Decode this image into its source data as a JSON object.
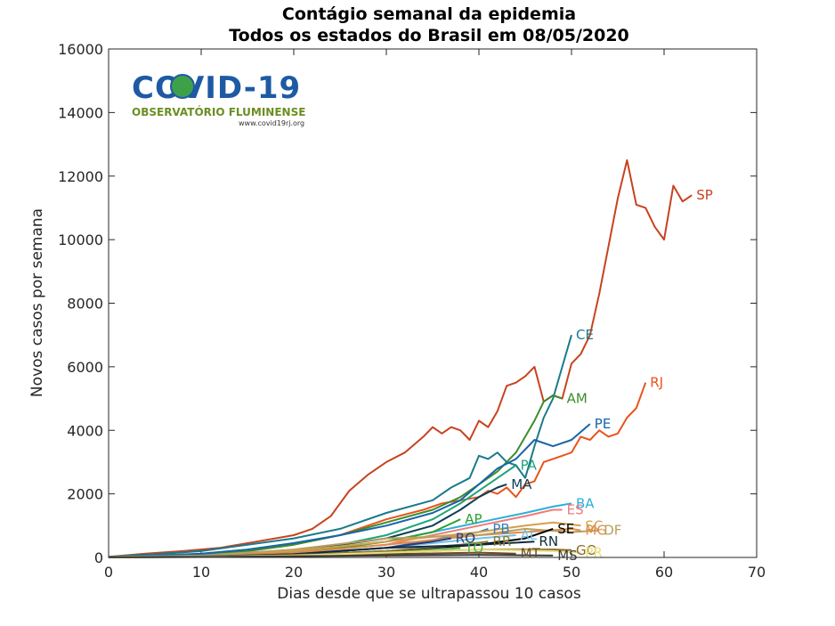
{
  "chart_data": {
    "type": "line",
    "title": "Contágio semanal da epidemia",
    "subtitle": "Todos os estados do Brasil em 08/05/2020",
    "xlabel": "Dias desde que se ultrapassou 10 casos",
    "ylabel": "Novos casos por semana",
    "xlim": [
      0,
      70
    ],
    "ylim": [
      0,
      16000
    ],
    "xticks": [
      0,
      10,
      20,
      30,
      40,
      50,
      60,
      70
    ],
    "yticks": [
      0,
      2000,
      4000,
      6000,
      8000,
      10000,
      12000,
      14000,
      16000
    ],
    "grid": false,
    "legend": "none",
    "logo": {
      "title": "COVID-19",
      "subtitle": "OBSERVATÓRIO FLUMINENSE",
      "url": "www.covid19rj.org"
    },
    "series": [
      {
        "name": "SP",
        "color": "#c8421e",
        "x": [
          0,
          4,
          8,
          12,
          16,
          20,
          22,
          24,
          26,
          28,
          30,
          32,
          34,
          35,
          36,
          37,
          38,
          39,
          40,
          41,
          42,
          43,
          44,
          45,
          46,
          47,
          48,
          49,
          50,
          51,
          52,
          53,
          54,
          55,
          56,
          57,
          58,
          59,
          60,
          61,
          62,
          63
        ],
        "y": [
          20,
          120,
          200,
          300,
          500,
          700,
          900,
          1300,
          2100,
          2600,
          3000,
          3300,
          3800,
          4100,
          3900,
          4100,
          4000,
          3700,
          4300,
          4100,
          4600,
          5400,
          5500,
          5700,
          6000,
          4900,
          5100,
          5000,
          6100,
          6400,
          7000,
          8300,
          9800,
          11300,
          12500,
          11100,
          11000,
          10400,
          10000,
          11700,
          11200,
          11400
        ]
      },
      {
        "name": "RJ",
        "color": "#e8541a",
        "x": [
          0,
          5,
          10,
          15,
          20,
          25,
          30,
          34,
          36,
          38,
          40,
          41,
          42,
          43,
          44,
          45,
          46,
          47,
          48,
          49,
          50,
          51,
          52,
          53,
          54,
          55,
          56,
          57,
          58
        ],
        "y": [
          10,
          60,
          100,
          200,
          400,
          700,
          1200,
          1500,
          1700,
          1800,
          1900,
          2100,
          2000,
          2200,
          1900,
          2300,
          2400,
          3000,
          3100,
          3200,
          3300,
          3800,
          3700,
          4000,
          3800,
          3900,
          4400,
          4700,
          5500
        ]
      },
      {
        "name": "CE",
        "color": "#1a7a8c",
        "x": [
          0,
          5,
          10,
          15,
          20,
          25,
          30,
          35,
          37,
          39,
          40,
          41,
          42,
          43,
          44,
          45,
          46,
          47,
          48,
          49,
          50
        ],
        "y": [
          20,
          100,
          200,
          400,
          600,
          900,
          1400,
          1800,
          2200,
          2500,
          3200,
          3100,
          3300,
          3000,
          2900,
          2500,
          3500,
          4400,
          5000,
          6000,
          7000
        ]
      },
      {
        "name": "AM",
        "color": "#3d8c2a",
        "x": [
          0,
          5,
          10,
          15,
          20,
          25,
          30,
          35,
          38,
          40,
          42,
          44,
          46,
          47,
          48,
          49
        ],
        "y": [
          10,
          50,
          100,
          200,
          400,
          700,
          1100,
          1500,
          1900,
          2300,
          2700,
          3300,
          4300,
          4900,
          5100,
          5000
        ]
      },
      {
        "name": "PE",
        "color": "#1565a8",
        "x": [
          0,
          5,
          10,
          15,
          20,
          25,
          30,
          35,
          38,
          40,
          42,
          44,
          46,
          48,
          50,
          52
        ],
        "y": [
          10,
          60,
          120,
          250,
          450,
          700,
          1000,
          1400,
          1800,
          2300,
          2800,
          3100,
          3700,
          3500,
          3700,
          4200
        ]
      },
      {
        "name": "PA",
        "color": "#1fa37a",
        "x": [
          0,
          10,
          20,
          25,
          30,
          35,
          38,
          40,
          42,
          44
        ],
        "y": [
          10,
          60,
          200,
          400,
          700,
          1200,
          1700,
          2100,
          2500,
          2900
        ]
      },
      {
        "name": "MA",
        "color": "#103e54",
        "x": [
          0,
          10,
          20,
          25,
          30,
          35,
          38,
          40,
          42,
          43
        ],
        "y": [
          10,
          60,
          200,
          400,
          600,
          1000,
          1500,
          1900,
          2200,
          2300
        ]
      },
      {
        "name": "BA",
        "color": "#2bb0d8",
        "x": [
          0,
          10,
          20,
          30,
          35,
          40,
          45,
          48,
          50
        ],
        "y": [
          10,
          60,
          200,
          500,
          800,
          1100,
          1400,
          1600,
          1700
        ]
      },
      {
        "name": "ES",
        "color": "#f07a7a",
        "x": [
          0,
          10,
          20,
          30,
          35,
          40,
          45,
          48,
          49
        ],
        "y": [
          10,
          50,
          150,
          400,
          700,
          1000,
          1300,
          1500,
          1500
        ]
      },
      {
        "name": "AP",
        "color": "#2ca02c",
        "x": [
          0,
          10,
          20,
          25,
          30,
          35,
          38
        ],
        "y": [
          10,
          50,
          150,
          300,
          500,
          800,
          1200
        ]
      },
      {
        "name": "PB",
        "color": "#2d7fbf",
        "x": [
          0,
          10,
          20,
          30,
          35,
          40,
          41
        ],
        "y": [
          10,
          40,
          120,
          300,
          550,
          800,
          900
        ]
      },
      {
        "name": "SC",
        "color": "#d4a04a",
        "x": [
          0,
          10,
          20,
          30,
          40,
          45,
          48,
          51
        ],
        "y": [
          10,
          50,
          200,
          500,
          800,
          1000,
          1100,
          1000
        ]
      },
      {
        "name": "MG",
        "color": "#e08a4a",
        "x": [
          0,
          10,
          20,
          30,
          40,
          45,
          50,
          51
        ],
        "y": [
          10,
          40,
          150,
          400,
          700,
          800,
          900,
          850
        ]
      },
      {
        "name": "DF",
        "color": "#b8a060",
        "x": [
          0,
          10,
          20,
          30,
          40,
          45,
          50,
          53
        ],
        "y": [
          10,
          60,
          250,
          600,
          700,
          900,
          800,
          850
        ]
      },
      {
        "name": "SE",
        "color": "#000000",
        "x": [
          0,
          10,
          20,
          30,
          40,
          45,
          48
        ],
        "y": [
          5,
          20,
          80,
          200,
          400,
          600,
          900
        ]
      },
      {
        "name": "AL",
        "color": "#6ec3e8",
        "x": [
          0,
          10,
          20,
          30,
          40,
          44
        ],
        "y": [
          5,
          30,
          100,
          300,
          600,
          700
        ]
      },
      {
        "name": "RO",
        "color": "#2e3a7a",
        "x": [
          0,
          10,
          20,
          30,
          35,
          37
        ],
        "y": [
          5,
          30,
          100,
          300,
          500,
          600
        ]
      },
      {
        "name": "RR",
        "color": "#8a7a3a",
        "x": [
          0,
          10,
          20,
          30,
          38,
          41
        ],
        "y": [
          5,
          20,
          80,
          200,
          400,
          500
        ]
      },
      {
        "name": "RN",
        "color": "#102a3a",
        "x": [
          0,
          10,
          20,
          30,
          40,
          46
        ],
        "y": [
          5,
          20,
          100,
          300,
          400,
          500
        ]
      },
      {
        "name": "TO",
        "color": "#5ab04a",
        "x": [
          0,
          10,
          20,
          30,
          36,
          38
        ],
        "y": [
          5,
          15,
          60,
          150,
          250,
          300
        ]
      },
      {
        "name": "GO",
        "color": "#8a6a2a",
        "x": [
          0,
          10,
          20,
          30,
          40,
          48,
          50
        ],
        "y": [
          5,
          20,
          80,
          150,
          250,
          250,
          230
        ]
      },
      {
        "name": "MT",
        "color": "#6b4a2a",
        "x": [
          0,
          10,
          20,
          30,
          40,
          44
        ],
        "y": [
          5,
          15,
          50,
          100,
          150,
          120
        ]
      },
      {
        "name": "PR",
        "color": "#e8e07a",
        "x": [
          0,
          10,
          20,
          30,
          40,
          48,
          51
        ],
        "y": [
          5,
          20,
          60,
          150,
          250,
          200,
          150
        ]
      },
      {
        "name": "MS",
        "color": "#3a3a3a",
        "x": [
          0,
          10,
          20,
          30,
          40,
          48
        ],
        "y": [
          5,
          15,
          40,
          60,
          80,
          60
        ]
      }
    ]
  }
}
